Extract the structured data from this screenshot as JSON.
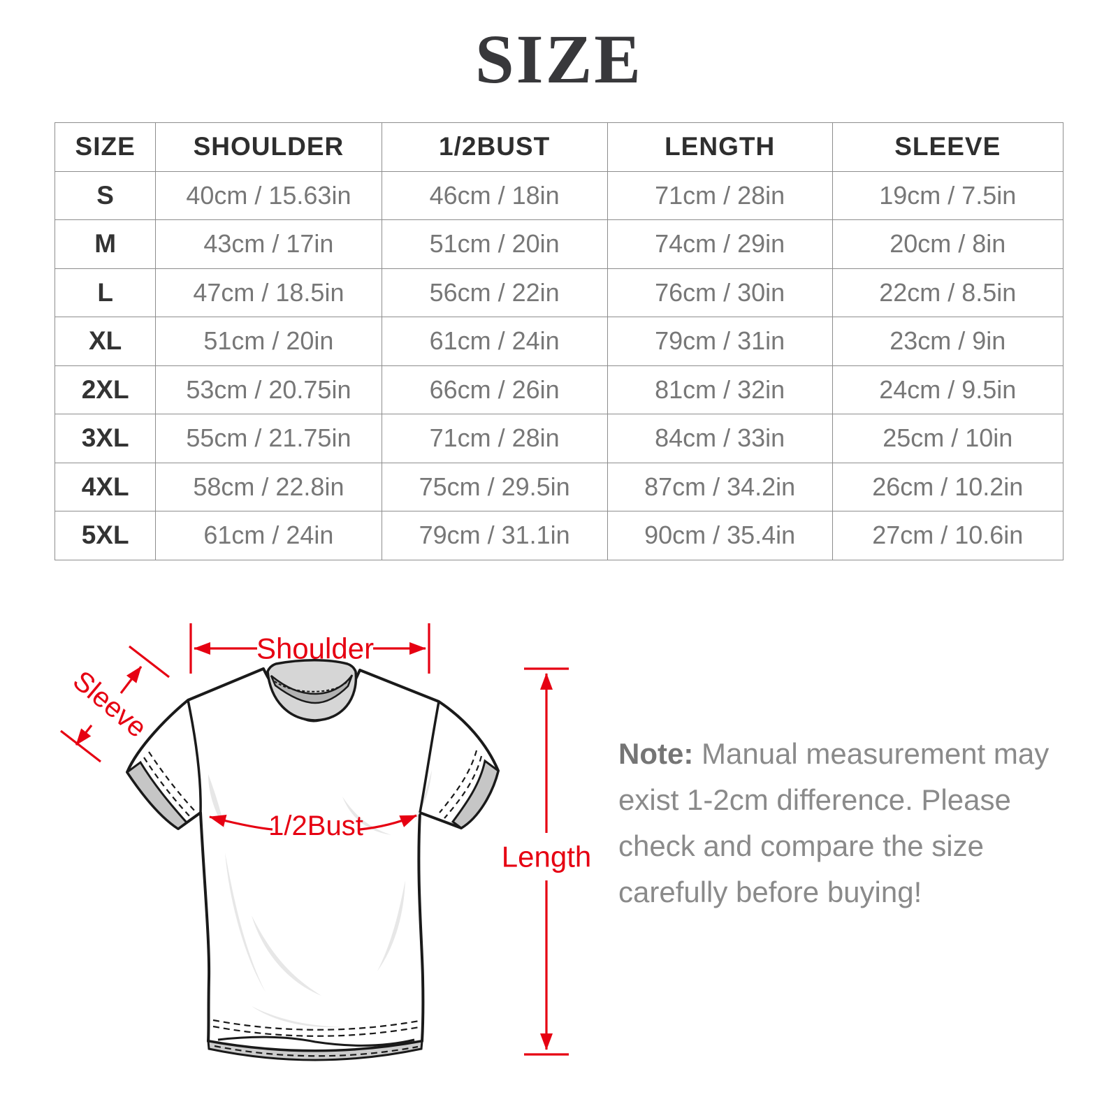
{
  "page": {
    "title": "SIZE"
  },
  "table": {
    "headers": [
      "SIZE",
      "SHOULDER",
      "1/2BUST",
      "LENGTH",
      "SLEEVE"
    ],
    "rows": [
      [
        "S",
        "40cm / 15.63in",
        "46cm / 18in",
        "71cm / 28in",
        "19cm / 7.5in"
      ],
      [
        "M",
        "43cm / 17in",
        "51cm / 20in",
        "74cm / 29in",
        "20cm / 8in"
      ],
      [
        "L",
        "47cm / 18.5in",
        "56cm / 22in",
        "76cm / 30in",
        "22cm / 8.5in"
      ],
      [
        "XL",
        "51cm / 20in",
        "61cm / 24in",
        "79cm / 31in",
        "23cm / 9in"
      ],
      [
        "2XL",
        "53cm / 20.75in",
        "66cm / 26in",
        "81cm / 32in",
        "24cm / 9.5in"
      ],
      [
        "3XL",
        "55cm / 21.75in",
        "71cm / 28in",
        "84cm / 33in",
        "25cm / 10in"
      ],
      [
        "4XL",
        "58cm / 22.8in",
        "75cm / 29.5in",
        "87cm / 34.2in",
        "26cm / 10.2in"
      ],
      [
        "5XL",
        "61cm / 24in",
        "79cm / 31.1in",
        "90cm / 35.4in",
        "27cm / 10.6in"
      ]
    ]
  },
  "diagram": {
    "labels": {
      "shoulder": "Shoulder",
      "sleeve": "Sleeve",
      "bust": "1/2Bust",
      "length": "Length"
    },
    "accent_color": "#e60012"
  },
  "note": {
    "label": "Note:",
    "lines": [
      "Manual measurement may",
      "exist 1-2cm difference. Please",
      "check and compare the size",
      "carefully before buying!"
    ]
  }
}
